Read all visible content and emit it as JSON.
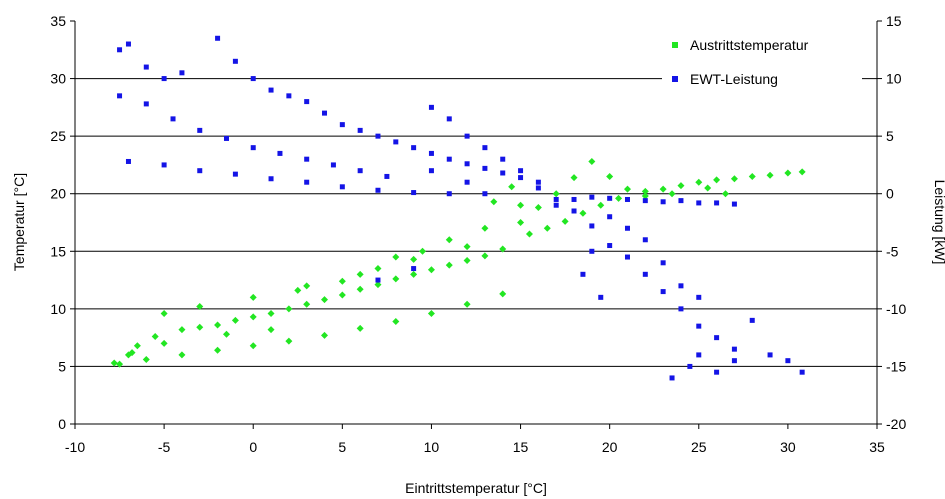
{
  "colors": {
    "series_austritt": "#22e622",
    "series_ewt": "#1414e6",
    "grid": "#000000",
    "axis": "#000000"
  },
  "chart_data": {
    "type": "scatter",
    "xlabel": "Eintrittstemperatur [°C]",
    "ylabel_left": "Temperatur [°C]",
    "ylabel_right": "Leistung [kW]",
    "xlim": [
      -10,
      35
    ],
    "ylim_left": [
      0,
      35
    ],
    "ylim_right": [
      -20,
      15
    ],
    "x_ticks": [
      "-10",
      "-5",
      "0",
      "5",
      "10",
      "15",
      "20",
      "25",
      "30",
      "35"
    ],
    "y_left_ticks": [
      "0",
      "5",
      "10",
      "15",
      "20",
      "25",
      "30",
      "35"
    ],
    "y_right_ticks": [
      "-20",
      "-15",
      "-10",
      "-5",
      "0",
      "5",
      "10",
      "15"
    ],
    "grid": "horizontal",
    "legend_position": "top-right",
    "series": [
      {
        "name": "Austrittstemperatur",
        "axis": "left",
        "marker": "diamond",
        "points": [
          [
            -7.5,
            5.2
          ],
          [
            -7.0,
            6.0
          ],
          [
            -6.5,
            6.8
          ],
          [
            -5.5,
            7.6
          ],
          [
            -5.0,
            7.0
          ],
          [
            -4.0,
            8.2
          ],
          [
            -3.0,
            8.4
          ],
          [
            -2.0,
            8.6
          ],
          [
            -1.0,
            9.0
          ],
          [
            0.0,
            9.3
          ],
          [
            1.0,
            9.6
          ],
          [
            2.0,
            10.0
          ],
          [
            3.0,
            10.4
          ],
          [
            4.0,
            10.8
          ],
          [
            5.0,
            11.2
          ],
          [
            6.0,
            11.7
          ],
          [
            7.0,
            12.1
          ],
          [
            8.0,
            12.6
          ],
          [
            9.0,
            13.0
          ],
          [
            10.0,
            13.4
          ],
          [
            11.0,
            13.8
          ],
          [
            12.0,
            14.2
          ],
          [
            13.0,
            14.6
          ],
          [
            14.0,
            15.2
          ],
          [
            -6.0,
            5.6
          ],
          [
            -4.0,
            6.0
          ],
          [
            -2.0,
            6.4
          ],
          [
            0.0,
            6.8
          ],
          [
            2.0,
            7.2
          ],
          [
            4.0,
            7.7
          ],
          [
            6.0,
            8.3
          ],
          [
            8.0,
            8.9
          ],
          [
            10.0,
            9.6
          ],
          [
            12.0,
            10.4
          ],
          [
            14.0,
            11.3
          ],
          [
            -5.0,
            9.6
          ],
          [
            -3.0,
            10.2
          ],
          [
            0.0,
            11.0
          ],
          [
            3.0,
            12.0
          ],
          [
            6.0,
            13.0
          ],
          [
            9.0,
            14.3
          ],
          [
            12.0,
            15.4
          ],
          [
            15.0,
            17.5
          ],
          [
            16.0,
            18.8
          ],
          [
            17.0,
            20.0
          ],
          [
            18.0,
            21.4
          ],
          [
            19.0,
            22.8
          ],
          [
            20.0,
            21.5
          ],
          [
            21.0,
            20.4
          ],
          [
            22.0,
            20.2
          ],
          [
            23.0,
            20.4
          ],
          [
            24.0,
            20.7
          ],
          [
            25.0,
            21.0
          ],
          [
            26.0,
            21.2
          ],
          [
            27.0,
            21.3
          ],
          [
            28.0,
            21.5
          ],
          [
            29.0,
            21.6
          ],
          [
            30.0,
            21.8
          ],
          [
            30.8,
            21.9
          ],
          [
            15.5,
            16.5
          ],
          [
            16.5,
            17.0
          ],
          [
            17.5,
            17.6
          ],
          [
            18.5,
            18.3
          ],
          [
            19.5,
            19.0
          ],
          [
            20.5,
            19.6
          ],
          [
            22.0,
            19.8
          ],
          [
            23.5,
            20.0
          ],
          [
            25.5,
            20.5
          ],
          [
            26.5,
            20.0
          ],
          [
            13.5,
            19.3
          ],
          [
            14.5,
            20.6
          ],
          [
            15.0,
            19.0
          ],
          [
            13.0,
            17.0
          ],
          [
            11.0,
            16.0
          ],
          [
            9.5,
            15.0
          ],
          [
            8.0,
            14.5
          ],
          [
            7.0,
            13.5
          ],
          [
            5.0,
            12.4
          ],
          [
            2.5,
            11.6
          ],
          [
            1.0,
            8.2
          ],
          [
            -1.5,
            7.8
          ],
          [
            -6.8,
            6.2
          ],
          [
            -7.8,
            5.3
          ]
        ]
      },
      {
        "name": "EWT-Leistung",
        "axis": "right",
        "marker": "square",
        "points": [
          [
            -7.5,
            12.5
          ],
          [
            -7.0,
            13.0
          ],
          [
            -6.0,
            11.0
          ],
          [
            -5.0,
            10.0
          ],
          [
            -4.0,
            10.5
          ],
          [
            -2.0,
            13.5
          ],
          [
            -1.0,
            11.5
          ],
          [
            0.0,
            10.0
          ],
          [
            1.0,
            9.0
          ],
          [
            2.0,
            8.5
          ],
          [
            3.0,
            8.0
          ],
          [
            4.0,
            7.0
          ],
          [
            -7.5,
            8.5
          ],
          [
            -6.0,
            7.8
          ],
          [
            -4.5,
            6.5
          ],
          [
            -3.0,
            5.5
          ],
          [
            -1.5,
            4.8
          ],
          [
            0.0,
            4.0
          ],
          [
            1.5,
            3.5
          ],
          [
            3.0,
            3.0
          ],
          [
            4.5,
            2.5
          ],
          [
            6.0,
            2.0
          ],
          [
            7.5,
            1.5
          ],
          [
            -7.0,
            2.8
          ],
          [
            -5.0,
            2.5
          ],
          [
            -3.0,
            2.0
          ],
          [
            -1.0,
            1.7
          ],
          [
            1.0,
            1.3
          ],
          [
            3.0,
            1.0
          ],
          [
            5.0,
            0.6
          ],
          [
            7.0,
            0.3
          ],
          [
            9.0,
            0.1
          ],
          [
            11.0,
            0.0
          ],
          [
            13.0,
            0.0
          ],
          [
            5.0,
            6.0
          ],
          [
            6.0,
            5.5
          ],
          [
            7.0,
            5.0
          ],
          [
            8.0,
            4.5
          ],
          [
            9.0,
            4.0
          ],
          [
            10.0,
            3.5
          ],
          [
            11.0,
            3.0
          ],
          [
            12.0,
            2.6
          ],
          [
            13.0,
            2.2
          ],
          [
            14.0,
            1.8
          ],
          [
            15.0,
            1.4
          ],
          [
            16.0,
            1.0
          ],
          [
            10.0,
            7.5
          ],
          [
            11.0,
            6.5
          ],
          [
            12.0,
            5.0
          ],
          [
            13.0,
            4.0
          ],
          [
            14.0,
            3.0
          ],
          [
            15.0,
            2.0
          ],
          [
            16.0,
            0.5
          ],
          [
            17.0,
            -0.5
          ],
          [
            18.0,
            -1.5
          ],
          [
            19.0,
            -2.8
          ],
          [
            20.0,
            -4.5
          ],
          [
            21.0,
            -5.5
          ],
          [
            22.0,
            -7.0
          ],
          [
            23.0,
            -8.5
          ],
          [
            24.0,
            -10.0
          ],
          [
            25.0,
            -11.5
          ],
          [
            26.0,
            -12.5
          ],
          [
            27.0,
            -13.5
          ],
          [
            28.0,
            -11.0
          ],
          [
            29.0,
            -14.0
          ],
          [
            30.0,
            -14.5
          ],
          [
            30.8,
            -15.5
          ],
          [
            17.0,
            -1.0
          ],
          [
            18.0,
            -0.5
          ],
          [
            19.0,
            -0.3
          ],
          [
            20.0,
            -0.4
          ],
          [
            21.0,
            -0.5
          ],
          [
            22.0,
            -0.6
          ],
          [
            23.0,
            -0.7
          ],
          [
            24.0,
            -0.6
          ],
          [
            25.0,
            -0.8
          ],
          [
            26.0,
            -0.8
          ],
          [
            27.0,
            -0.9
          ],
          [
            20.0,
            -2.0
          ],
          [
            21.0,
            -3.0
          ],
          [
            22.0,
            -4.0
          ],
          [
            23.0,
            -6.0
          ],
          [
            24.0,
            -8.0
          ],
          [
            25.0,
            -9.0
          ],
          [
            23.5,
            -16.0
          ],
          [
            24.5,
            -15.0
          ],
          [
            26.0,
            -15.5
          ],
          [
            25.0,
            -14.0
          ],
          [
            27.0,
            -14.5
          ],
          [
            19.0,
            -5.0
          ],
          [
            18.5,
            -7.0
          ],
          [
            19.5,
            -9.0
          ],
          [
            7.0,
            -7.5
          ],
          [
            9.0,
            -6.5
          ],
          [
            10.0,
            2.0
          ],
          [
            12.0,
            1.0
          ]
        ]
      }
    ]
  }
}
